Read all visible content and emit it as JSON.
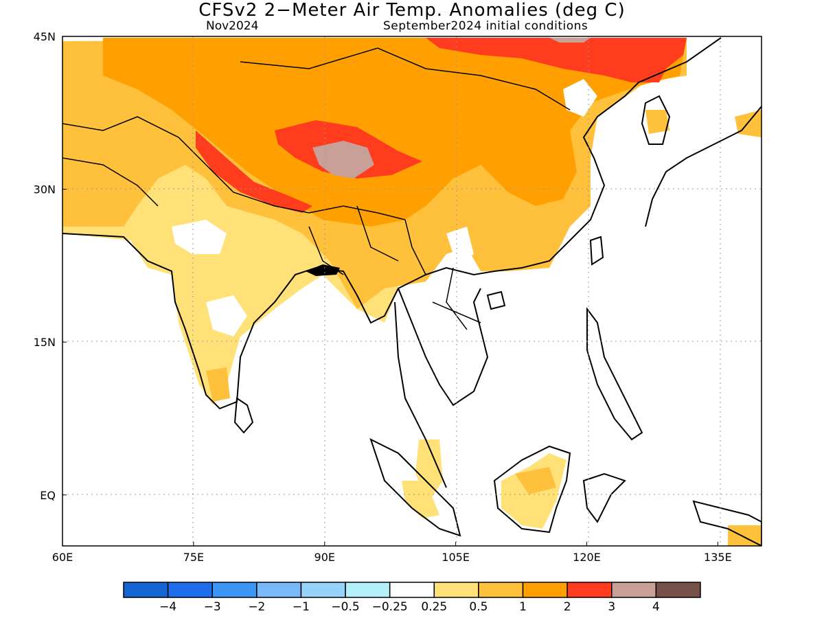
{
  "title": "CFSv2 2−Meter Air Temp. Anomalies (deg C)",
  "subtitle_left": "Nov2024",
  "subtitle_right": "September2024 initial conditions",
  "axes": {
    "x_ticks": [
      {
        "lon": 60,
        "label": "60E"
      },
      {
        "lon": 75,
        "label": "75E"
      },
      {
        "lon": 90,
        "label": "90E"
      },
      {
        "lon": 105,
        "label": "105E"
      },
      {
        "lon": 120,
        "label": "120E"
      },
      {
        "lon": 135,
        "label": "135E"
      }
    ],
    "y_ticks": [
      {
        "lat": 45,
        "label": "45N"
      },
      {
        "lat": 30,
        "label": "30N"
      },
      {
        "lat": 15,
        "label": "15N"
      },
      {
        "lat": 0,
        "label": "EQ"
      }
    ],
    "lon_range": [
      60,
      140
    ],
    "lat_range": [
      -5,
      45
    ],
    "grid": "dotted"
  },
  "colorbar": {
    "colors": [
      "#1464d2",
      "#1e6eeb",
      "#3c96f5",
      "#78b9fa",
      "#96d2fa",
      "#b4f0fa",
      "#ffffff",
      "#ffe178",
      "#ffc03c",
      "#ffa000",
      "#ff3c1e",
      "#c8a098",
      "#78504a"
    ],
    "labels": [
      "−4",
      "−3",
      "−2",
      "−1",
      "−0.5",
      "−0.25",
      "0.25",
      "0.5",
      "1",
      "2",
      "3",
      "4"
    ]
  },
  "legend_colors": {
    "low": "#ffe178",
    "mid": "#ffc03c",
    "high": "#ffa000",
    "very_high": "#ff3c1e",
    "extreme": "#c8a098",
    "coast": "#000000"
  }
}
